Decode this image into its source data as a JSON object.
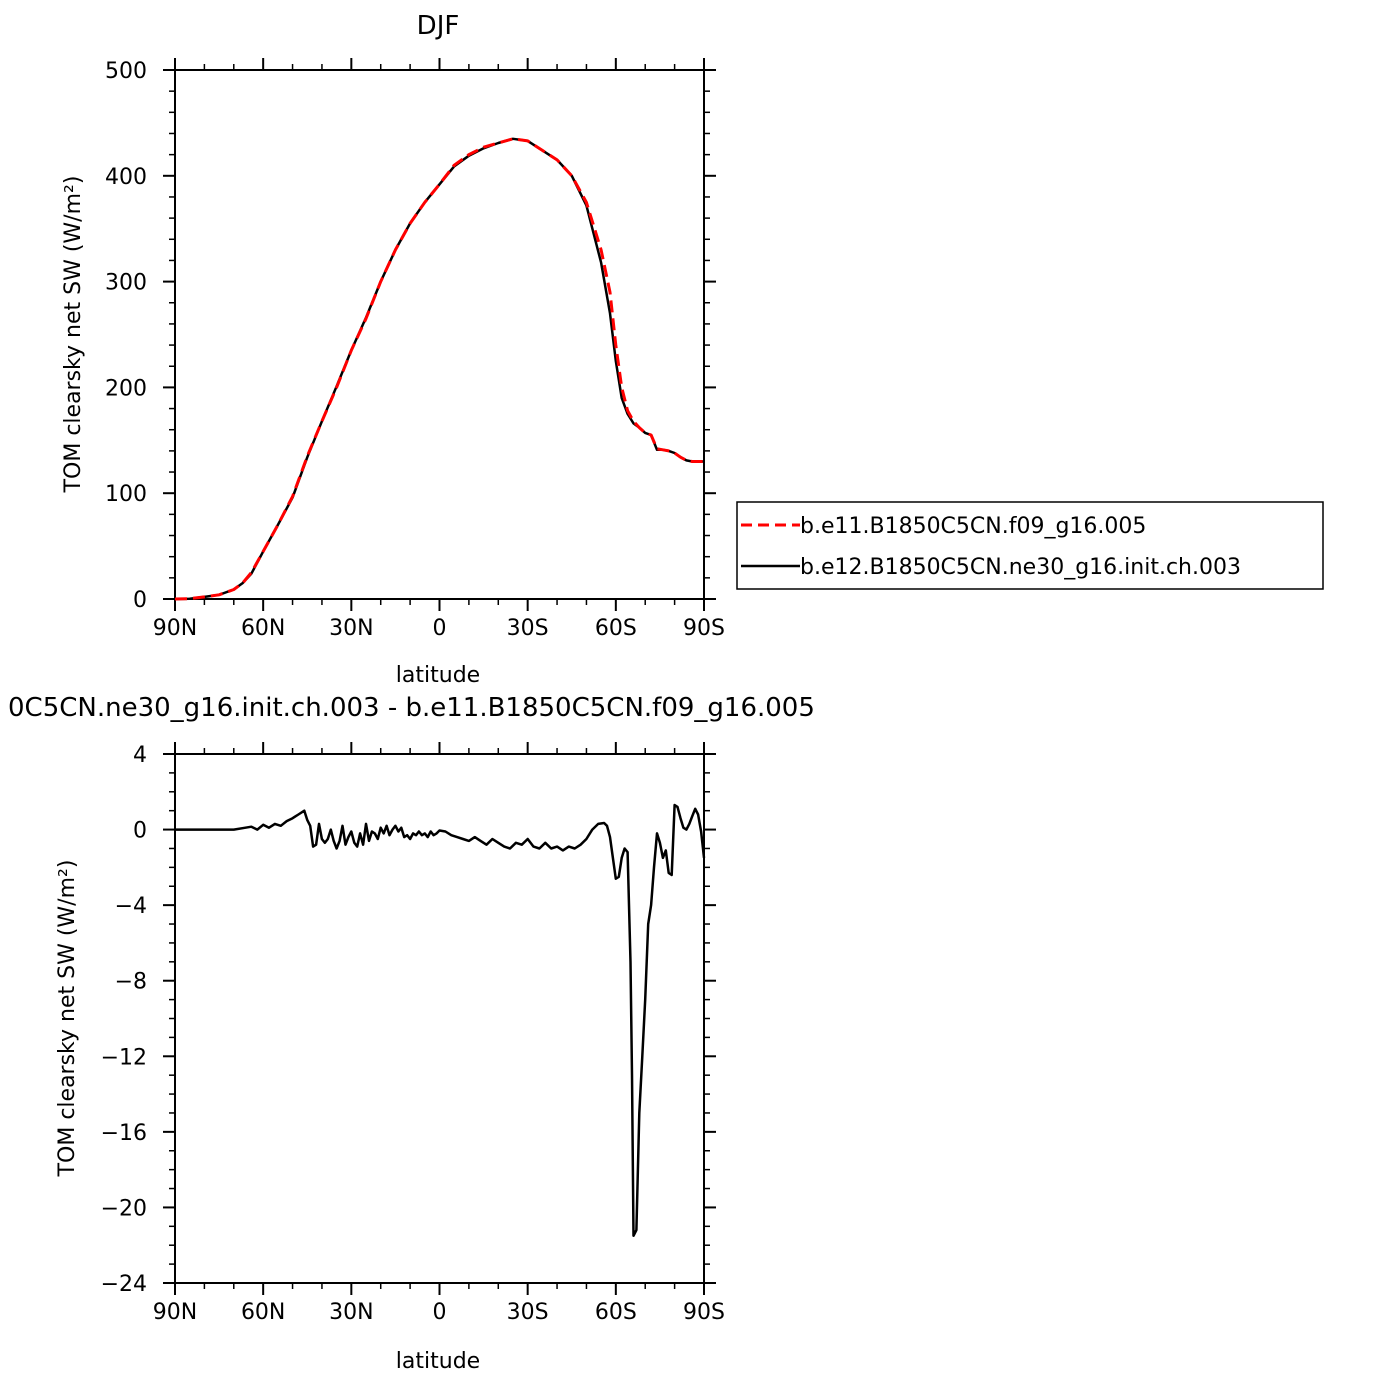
{
  "chart_data": [
    {
      "type": "line",
      "title": "DJF",
      "xlabel": "latitude",
      "ylabel": "TOM clearsky net SW (W/m²)",
      "xlim": [
        90,
        -90
      ],
      "x_tick_labels": [
        "90N",
        "60N",
        "30N",
        "0",
        "30S",
        "60S",
        "90S"
      ],
      "x_tick_values": [
        90,
        60,
        30,
        0,
        -30,
        -60,
        -90
      ],
      "ylim": [
        0,
        500
      ],
      "y_ticks": [
        0,
        100,
        200,
        300,
        400,
        500
      ],
      "x": [
        90,
        85,
        80,
        75,
        70,
        67,
        64,
        60,
        55,
        50,
        45,
        40,
        35,
        30,
        25,
        20,
        15,
        10,
        5,
        0,
        -5,
        -10,
        -15,
        -20,
        -25,
        -30,
        -35,
        -40,
        -45,
        -50,
        -55,
        -58,
        -60,
        -62,
        -64,
        -66,
        -68,
        -70,
        -72,
        -74,
        -76,
        -78,
        -80,
        -82,
        -84,
        -86,
        -88,
        -90
      ],
      "series": [
        {
          "name": "b.e11.B1850C5CN.f09_g16.005",
          "color": "#ff0000",
          "dash": "dashed",
          "values": [
            0,
            0.3,
            2,
            4,
            9,
            15,
            25,
            45,
            70,
            97,
            135,
            168,
            200,
            235,
            265,
            300,
            330,
            355,
            375,
            392,
            410,
            420,
            427,
            431,
            435,
            433,
            424,
            415,
            400,
            375,
            330,
            290,
            240,
            200,
            178,
            168,
            162,
            157,
            155,
            142,
            141,
            140,
            138,
            134,
            131,
            130,
            130,
            130
          ]
        },
        {
          "name": "b.e12.B1850C5CN.ne30_g16.init.ch.003",
          "color": "#000000",
          "dash": "solid",
          "values": [
            0,
            0.3,
            2,
            4,
            9,
            15,
            24,
            45,
            70,
            96,
            134,
            168,
            201,
            235,
            266,
            300,
            330,
            355,
            375,
            392,
            409,
            419,
            426,
            431,
            435,
            433,
            424,
            415,
            400,
            372,
            318,
            270,
            225,
            190,
            175,
            166,
            162,
            157,
            155,
            141,
            141,
            140,
            138,
            134,
            131,
            130,
            130,
            130
          ]
        }
      ],
      "legend": {
        "position": "right",
        "entries": [
          "b.e11.B1850C5CN.f09_g16.005",
          "b.e12.B1850C5CN.ne30_g16.init.ch.003"
        ]
      }
    },
    {
      "type": "line",
      "title": "0C5CN.ne30_g16.init.ch.003 - b.e11.B1850C5CN.f09_g16.005",
      "xlabel": "latitude",
      "ylabel": "TOM clearsky net SW (W/m²)",
      "xlim": [
        90,
        -90
      ],
      "x_tick_labels": [
        "90N",
        "60N",
        "30N",
        "0",
        "30S",
        "60S",
        "90S"
      ],
      "x_tick_values": [
        90,
        60,
        30,
        0,
        -30,
        -60,
        -90
      ],
      "ylim": [
        -24,
        4
      ],
      "y_tick_labels": [
        "−24",
        "−20",
        "−16",
        "−12",
        "−8",
        "−4",
        "0",
        "4"
      ],
      "y_ticks": [
        -24,
        -20,
        -16,
        -12,
        -8,
        -4,
        0,
        4
      ],
      "x": [
        90,
        80,
        70,
        66,
        64,
        62,
        60,
        58,
        56,
        54,
        52,
        50,
        49,
        48,
        46,
        45,
        44,
        43,
        42,
        41,
        40,
        39,
        38,
        37,
        36,
        35,
        34,
        33,
        32,
        31,
        30,
        29,
        28,
        27,
        26,
        25,
        24,
        23,
        22,
        21,
        20,
        19,
        18,
        17,
        16,
        15,
        14,
        13,
        12,
        11,
        10,
        9,
        8,
        7,
        6,
        5,
        4,
        3,
        2,
        1,
        0,
        -2,
        -4,
        -6,
        -8,
        -10,
        -12,
        -14,
        -16,
        -18,
        -20,
        -22,
        -24,
        -26,
        -28,
        -30,
        -32,
        -34,
        -36,
        -38,
        -40,
        -42,
        -44,
        -46,
        -48,
        -50,
        -52,
        -54,
        -56,
        -57,
        -58,
        -59,
        -60,
        -61,
        -62,
        -63,
        -64,
        -65,
        -65.5,
        -66,
        -67,
        -68,
        -69,
        -70,
        -71,
        -72,
        -73,
        -74,
        -75,
        -76,
        -77,
        -78,
        -79,
        -80,
        -81,
        -82,
        -83,
        -84,
        -85,
        -86,
        -87,
        -88,
        -89,
        -90
      ],
      "series": [
        {
          "name": "",
          "color": "#000000",
          "dash": "solid",
          "values": [
            0,
            0,
            0,
            0.1,
            0.15,
            0.0,
            0.25,
            0.1,
            0.3,
            0.2,
            0.45,
            0.6,
            0.7,
            0.8,
            1.0,
            0.5,
            0.2,
            -0.9,
            -0.8,
            0.3,
            -0.5,
            -0.7,
            -0.5,
            0.0,
            -0.6,
            -1.0,
            -0.6,
            0.2,
            -0.8,
            -0.4,
            -0.1,
            -0.7,
            -0.9,
            -0.2,
            -0.8,
            0.3,
            -0.6,
            -0.1,
            -0.2,
            -0.5,
            0.1,
            -0.2,
            0.2,
            -0.3,
            0.0,
            0.2,
            -0.1,
            0.1,
            -0.4,
            -0.3,
            -0.5,
            -0.2,
            -0.3,
            -0.1,
            -0.3,
            -0.2,
            -0.4,
            -0.1,
            -0.3,
            -0.2,
            -0.05,
            -0.1,
            -0.3,
            -0.4,
            -0.5,
            -0.6,
            -0.4,
            -0.6,
            -0.8,
            -0.5,
            -0.7,
            -0.9,
            -1.0,
            -0.7,
            -0.8,
            -0.5,
            -0.9,
            -1.0,
            -0.7,
            -1.0,
            -0.9,
            -1.1,
            -0.9,
            -1.0,
            -0.8,
            -0.5,
            0.0,
            0.3,
            0.35,
            0.2,
            -0.4,
            -1.5,
            -2.6,
            -2.5,
            -1.5,
            -1.0,
            -1.2,
            -7.0,
            -13.0,
            -21.5,
            -21.2,
            -15.0,
            -12.0,
            -9.0,
            -5.0,
            -4.0,
            -2.0,
            -0.2,
            -0.7,
            -1.5,
            -1.1,
            -2.3,
            -2.4,
            1.3,
            1.2,
            0.6,
            0.1,
            0.0,
            0.3,
            0.7,
            1.1,
            0.8,
            -0.1,
            -1.5
          ]
        }
      ]
    }
  ]
}
